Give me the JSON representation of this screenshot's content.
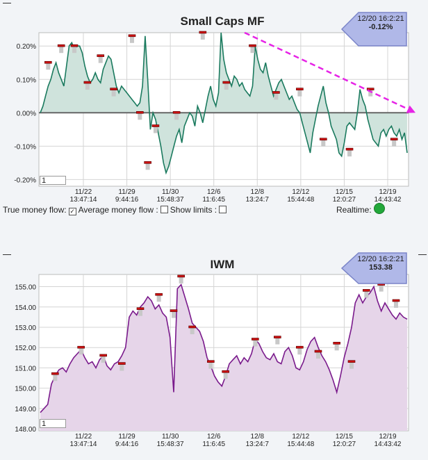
{
  "chart_data": [
    {
      "type": "area",
      "title": "Small Caps MF",
      "badge": {
        "date": "12/20 16:2:21",
        "value": "-0.12%"
      },
      "yticks": [
        "0.20%",
        "0.10%",
        "0.00%",
        "-0.10%",
        "-0.20%"
      ],
      "ylim": [
        -0.22,
        0.24
      ],
      "xticks": [
        {
          "date": "11/22",
          "time": "13:47:14"
        },
        {
          "date": "11/29",
          "time": "9:44:16"
        },
        {
          "date": "11/30",
          "time": "15:48:37"
        },
        {
          "date": "12/6",
          "time": "11:6:45"
        },
        {
          "date": "12/8",
          "time": "13:24:7"
        },
        {
          "date": "12/12",
          "time": "15:44:48"
        },
        {
          "date": "12/15",
          "time": "12:0:27"
        },
        {
          "date": "12/19",
          "time": "14:43:42"
        }
      ],
      "series": [
        {
          "color": "#1a7a5e",
          "fill": "#cfe3dc",
          "x": [
            0,
            1,
            2,
            3,
            4,
            5,
            6,
            7,
            8,
            9,
            10,
            11,
            12,
            13,
            14,
            15,
            16,
            17,
            18,
            19,
            20,
            21,
            22,
            23,
            24,
            25,
            26,
            27,
            28,
            29,
            30,
            31,
            32,
            33,
            34,
            35,
            36,
            37,
            38,
            39,
            40,
            41,
            42,
            43,
            44,
            45,
            46,
            47,
            48,
            49,
            50,
            51,
            52,
            53,
            54,
            55,
            56,
            57,
            58,
            59,
            60,
            61,
            62,
            63,
            64,
            65,
            66,
            67,
            68,
            69,
            70,
            71,
            72,
            73,
            74,
            75,
            76,
            77,
            78,
            79,
            80,
            81,
            82,
            83,
            84,
            85,
            86,
            87,
            88,
            89,
            90,
            91,
            92,
            93,
            94,
            95,
            96,
            97,
            98,
            99,
            100,
            101,
            102,
            103,
            104,
            105,
            106,
            107,
            108,
            109,
            110,
            111,
            112,
            113,
            114,
            115,
            116,
            117,
            118,
            119,
            120,
            121,
            122,
            123,
            124,
            125,
            126,
            127,
            128,
            129,
            130,
            131,
            132,
            133,
            134,
            135,
            136,
            137,
            138,
            139,
            140
          ],
          "values": [
            0.0,
            0.02,
            0.05,
            0.08,
            0.1,
            0.13,
            0.15,
            0.12,
            0.1,
            0.08,
            0.14,
            0.2,
            0.21,
            0.19,
            0.2,
            0.2,
            0.18,
            0.14,
            0.11,
            0.09,
            0.1,
            0.12,
            0.1,
            0.09,
            0.13,
            0.15,
            0.17,
            0.16,
            0.12,
            0.08,
            0.06,
            0.08,
            0.07,
            0.06,
            0.05,
            0.04,
            0.03,
            0.02,
            0.03,
            0.08,
            0.23,
            0.1,
            -0.05,
            0.0,
            -0.02,
            -0.06,
            -0.1,
            -0.15,
            -0.18,
            -0.16,
            -0.13,
            -0.1,
            -0.07,
            -0.05,
            -0.09,
            -0.04,
            -0.02,
            0.0,
            -0.01,
            -0.04,
            0.02,
            0.0,
            -0.03,
            0.01,
            0.05,
            0.08,
            0.04,
            0.02,
            0.06,
            0.24,
            0.16,
            0.12,
            0.1,
            0.08,
            0.11,
            0.1,
            0.08,
            0.09,
            0.07,
            0.06,
            0.05,
            0.08,
            0.2,
            0.16,
            0.13,
            0.12,
            0.15,
            0.11,
            0.08,
            0.05,
            0.07,
            0.09,
            0.1,
            0.08,
            0.06,
            0.04,
            0.05,
            0.03,
            0.01,
            0.0,
            -0.03,
            -0.06,
            -0.09,
            -0.12,
            -0.06,
            -0.02,
            0.02,
            0.05,
            0.08,
            0.03,
            0.0,
            -0.04,
            -0.06,
            -0.08,
            -0.12,
            -0.13,
            -0.09,
            -0.04,
            -0.03,
            -0.04,
            -0.05,
            0.0,
            0.07,
            0.04,
            0.02,
            -0.02,
            -0.05,
            -0.08,
            -0.09,
            -0.1,
            -0.06,
            -0.05,
            -0.07,
            -0.05,
            -0.04,
            -0.06,
            -0.07,
            -0.05,
            -0.08,
            -0.06,
            -0.12
          ],
          "markers": [
            {
              "x": 8,
              "y": 0.15
            },
            {
              "x": 19,
              "y": 0.2
            },
            {
              "x": 30,
              "y": 0.2
            },
            {
              "x": 43,
              "y": 0.09
            },
            {
              "x": 55,
              "y": 0.17
            },
            {
              "x": 66,
              "y": 0.07
            },
            {
              "x": 83,
              "y": 0.23
            },
            {
              "x": 90,
              "y": 0.0
            },
            {
              "x": 97,
              "y": -0.15
            },
            {
              "x": 104,
              "y": -0.04
            },
            {
              "x": 122,
              "y": 0.0
            },
            {
              "x": 146,
              "y": 0.24
            },
            {
              "x": 167,
              "y": 0.09
            },
            {
              "x": 190,
              "y": 0.2
            },
            {
              "x": 213,
              "y": 0.06
            },
            {
              "x": 233,
              "y": 0.07
            },
            {
              "x": 255,
              "y": -0.08
            },
            {
              "x": 277,
              "y": -0.11
            },
            {
              "x": 297,
              "y": 0.07
            },
            {
              "x": 318,
              "y": -0.08
            }
          ]
        }
      ],
      "trend": {
        "color": "#e623e6"
      },
      "controls": {
        "true_flow": "True money flow:",
        "avg_flow": "Average money flow :",
        "limits": "Show limits :",
        "realtime": "Realtime:"
      },
      "input_value": "1"
    },
    {
      "type": "area",
      "title": "IWM",
      "badge": {
        "date": "12/20 16:2:21",
        "value": "153.38"
      },
      "yticks": [
        "155.00",
        "154.00",
        "153.00",
        "152.00",
        "151.00",
        "150.00",
        "149.00",
        "148.00"
      ],
      "ylim": [
        147.9,
        155.6
      ],
      "xticks": [
        {
          "date": "11/22",
          "time": "13:47:14"
        },
        {
          "date": "11/29",
          "time": "9:44:16"
        },
        {
          "date": "11/30",
          "time": "15:48:37"
        },
        {
          "date": "12/6",
          "time": "11:6:45"
        },
        {
          "date": "12/8",
          "time": "13:24:7"
        },
        {
          "date": "12/12",
          "time": "15:44:48"
        },
        {
          "date": "12/15",
          "time": "12:0:27"
        },
        {
          "date": "12/19",
          "time": "14:43:42"
        }
      ],
      "series": [
        {
          "color": "#7a1a8c",
          "fill": "#e6d5e9",
          "values": [
            148.8,
            149.0,
            149.2,
            150.2,
            150.6,
            150.9,
            151.0,
            150.8,
            151.2,
            151.5,
            151.7,
            151.9,
            151.5,
            151.2,
            151.3,
            151.0,
            151.4,
            151.6,
            151.1,
            150.9,
            151.2,
            151.3,
            151.6,
            152.0,
            153.5,
            153.8,
            153.6,
            154.0,
            154.2,
            154.5,
            154.3,
            153.9,
            154.1,
            153.7,
            153.5,
            152.5,
            149.8,
            154.9,
            155.1,
            154.5,
            153.9,
            153.2,
            153.0,
            152.8,
            152.3,
            151.5,
            151.1,
            150.6,
            150.3,
            150.1,
            150.6,
            151.2,
            151.4,
            151.6,
            151.2,
            151.5,
            151.3,
            151.7,
            152.4,
            152.2,
            151.8,
            151.5,
            151.4,
            151.7,
            151.3,
            151.2,
            151.8,
            152.0,
            151.6,
            151.0,
            150.9,
            151.3,
            151.9,
            152.3,
            152.5,
            152.0,
            151.6,
            151.3,
            150.9,
            150.4,
            149.8,
            150.6,
            151.5,
            152.2,
            153.0,
            154.2,
            154.6,
            154.2,
            154.5,
            154.7,
            155.0,
            154.3,
            153.8,
            154.2,
            153.9,
            153.6,
            153.4,
            153.7,
            153.5,
            153.4
          ],
          "markers": [
            {
              "i": 4,
              "y": 150.7
            },
            {
              "i": 11,
              "y": 152.0
            },
            {
              "i": 17,
              "y": 151.6
            },
            {
              "i": 22,
              "y": 151.2
            },
            {
              "i": 27,
              "y": 153.9
            },
            {
              "i": 32,
              "y": 154.6
            },
            {
              "i": 36,
              "y": 153.8
            },
            {
              "i": 38,
              "y": 155.5
            },
            {
              "i": 41,
              "y": 153.0
            },
            {
              "i": 46,
              "y": 151.3
            },
            {
              "i": 50,
              "y": 150.8
            },
            {
              "i": 58,
              "y": 152.4
            },
            {
              "i": 64,
              "y": 152.5
            },
            {
              "i": 70,
              "y": 152.0
            },
            {
              "i": 75,
              "y": 151.8
            },
            {
              "i": 80,
              "y": 152.2
            },
            {
              "i": 84,
              "y": 151.3
            },
            {
              "i": 88,
              "y": 154.8
            },
            {
              "i": 92,
              "y": 155.1
            },
            {
              "i": 96,
              "y": 154.3
            }
          ]
        }
      ],
      "input_value": "1"
    }
  ]
}
